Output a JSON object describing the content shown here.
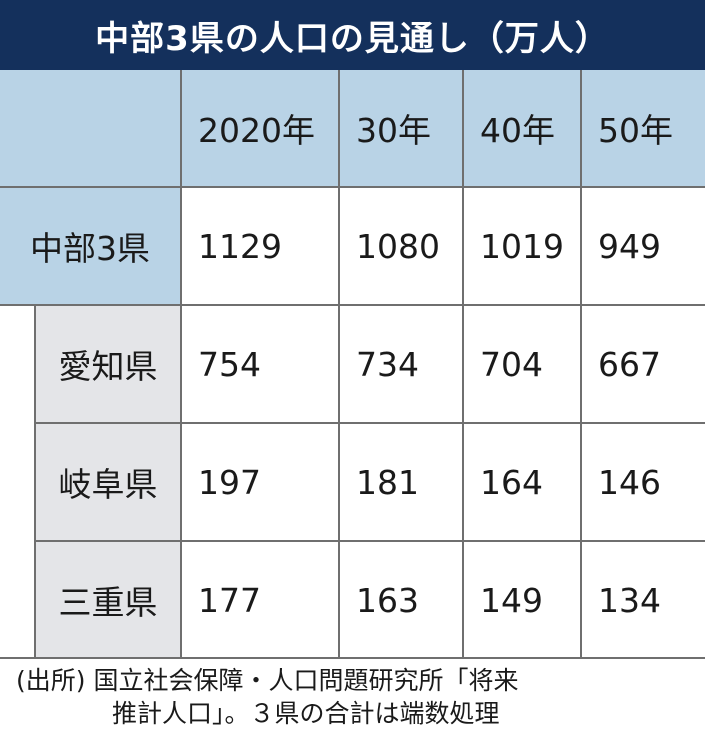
{
  "title": "中部3県の人口の見通し（万人）",
  "chart_data": {
    "type": "table",
    "columns": [
      "",
      "2020年",
      "30年",
      "40年",
      "50年"
    ],
    "rows": [
      {
        "label": "中部3県",
        "values": [
          1129,
          1080,
          1019,
          949
        ]
      },
      {
        "label": "愛知県",
        "values": [
          754,
          734,
          704,
          667
        ]
      },
      {
        "label": "岐阜県",
        "values": [
          197,
          181,
          164,
          146
        ]
      },
      {
        "label": "三重県",
        "values": [
          177,
          163,
          149,
          134
        ]
      }
    ]
  },
  "footnote": {
    "line1": "(出所) 国立社会保障・人口問題研究所「将来",
    "line2": "推計人口」。３県の合計は端数処理"
  },
  "colors": {
    "title_bg": "#14305c",
    "header_bg": "#b9d3e6",
    "sub_label_bg": "#e4e5e8",
    "grid_line": "#6f6f6f"
  }
}
